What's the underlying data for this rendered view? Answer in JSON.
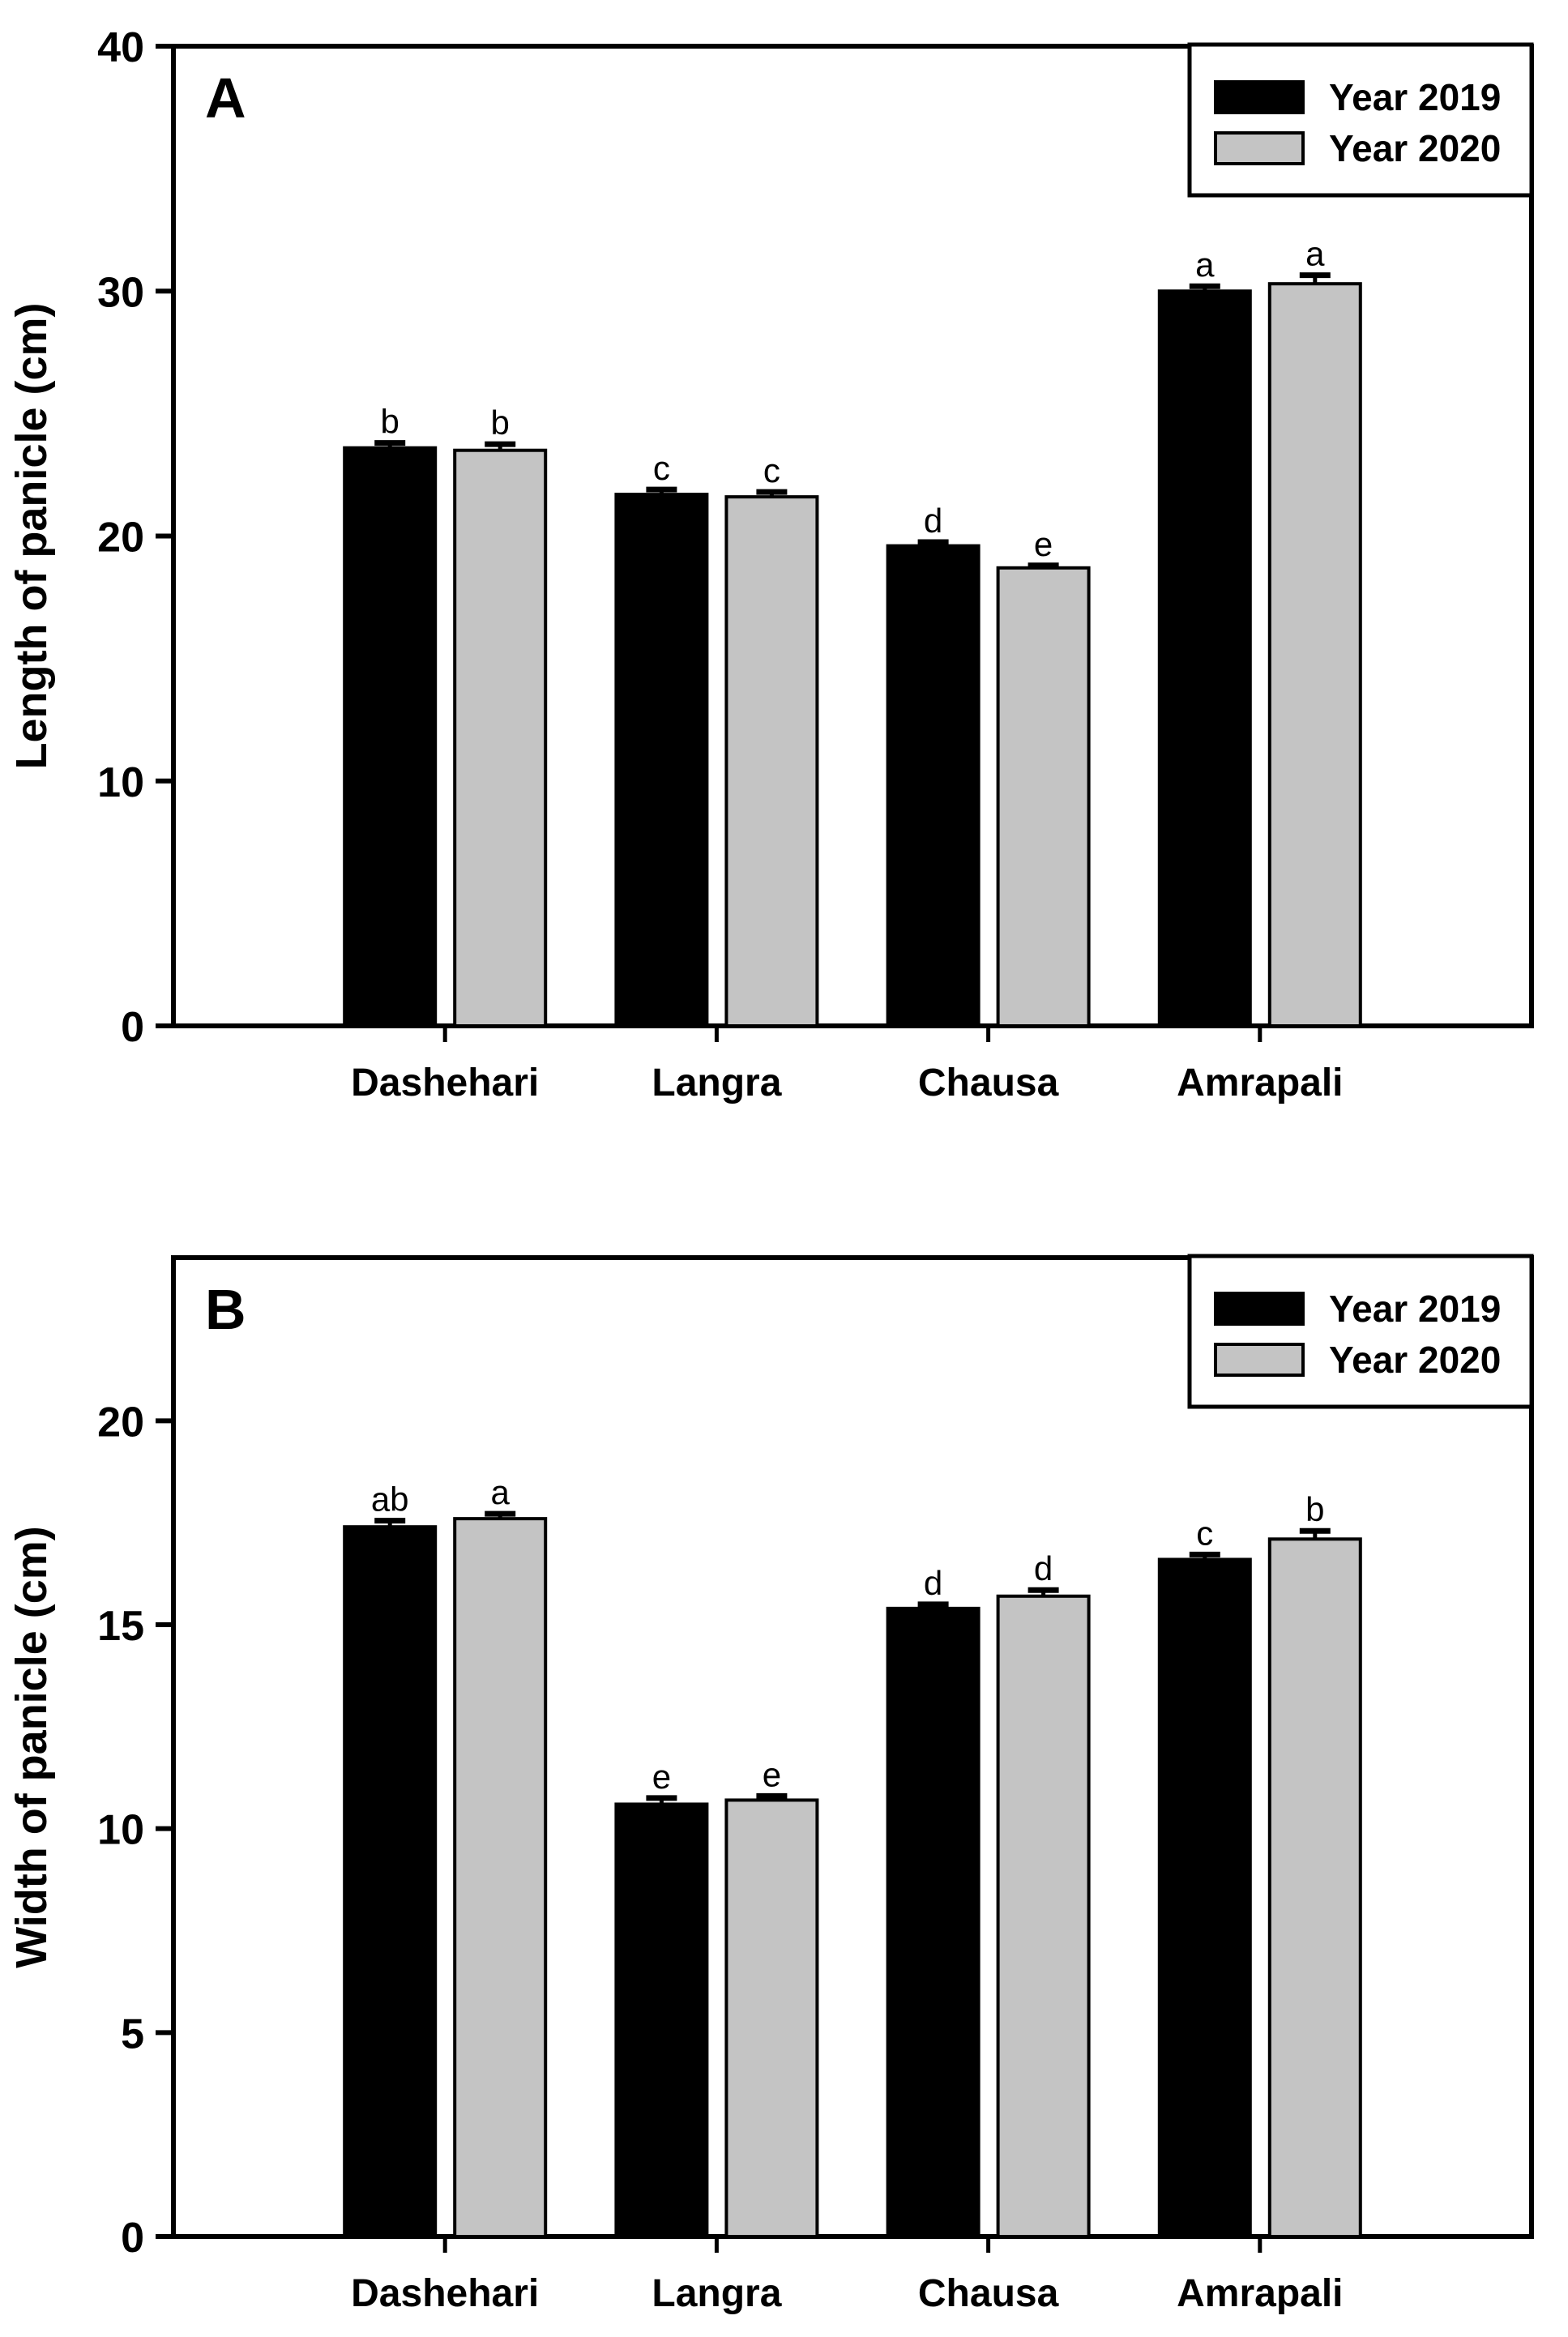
{
  "figure": {
    "background": "#ffffff",
    "bar_black": "#000000",
    "bar_gray": "#c4c4c4"
  },
  "chart_data": [
    {
      "type": "bar",
      "panel_label": "A",
      "title": "",
      "xlabel": "",
      "ylabel": "Length of panicle (cm)",
      "ylim": [
        0,
        40
      ],
      "yticks": [
        0,
        10,
        20,
        30,
        40
      ],
      "grid": false,
      "legend_position": "top-right",
      "categories": [
        "Dashehari",
        "Langra",
        "Chausa",
        "Amrapali"
      ],
      "series": [
        {
          "name": "Year 2019",
          "color": "#000000",
          "values": [
            23.6,
            21.7,
            19.6,
            30.0
          ],
          "errors": [
            0.2,
            0.2,
            0.15,
            0.2
          ],
          "sig_letters": [
            "b",
            "c",
            "d",
            "a"
          ]
        },
        {
          "name": "Year 2020",
          "color": "#c4c4c4",
          "values": [
            23.5,
            21.6,
            18.7,
            30.3
          ],
          "errors": [
            0.25,
            0.2,
            0.1,
            0.35
          ],
          "sig_letters": [
            "b",
            "c",
            "e",
            "a"
          ]
        }
      ]
    },
    {
      "type": "bar",
      "panel_label": "B",
      "title": "",
      "xlabel": "",
      "ylabel": "Width of panicle (cm)",
      "ylim": [
        0,
        24
      ],
      "yticks": [
        0,
        5,
        10,
        15,
        20
      ],
      "grid": false,
      "legend_position": "top-right",
      "categories": [
        "Dashehari",
        "Langra",
        "Chausa",
        "Amrapali"
      ],
      "series": [
        {
          "name": "Year 2019",
          "color": "#000000",
          "values": [
            17.4,
            10.6,
            15.4,
            16.6
          ],
          "errors": [
            0.15,
            0.15,
            0.1,
            0.12
          ],
          "sig_letters": [
            "ab",
            "e",
            "d",
            "c"
          ]
        },
        {
          "name": "Year 2020",
          "color": "#c4c4c4",
          "values": [
            17.6,
            10.7,
            15.7,
            17.1
          ],
          "errors": [
            0.12,
            0.1,
            0.15,
            0.2
          ],
          "sig_letters": [
            "a",
            "e",
            "d",
            "b"
          ]
        }
      ]
    }
  ]
}
